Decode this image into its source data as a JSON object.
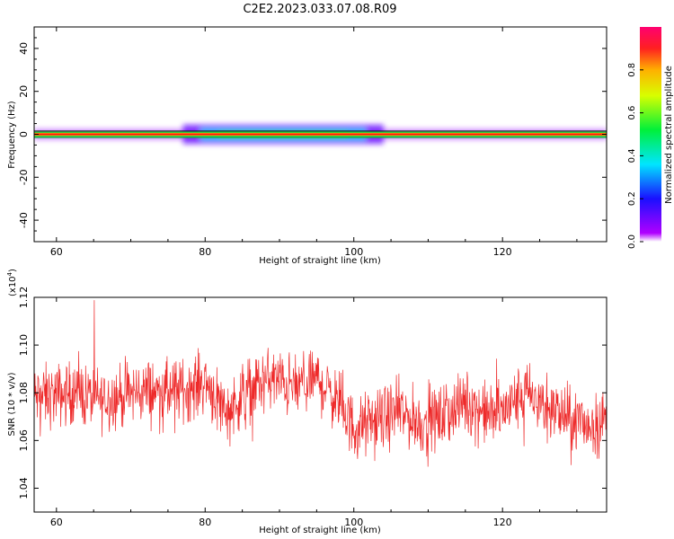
{
  "figure": {
    "title": "C2E2.2023.033.07.08.R09"
  },
  "chart_data": [
    {
      "type": "heatmap",
      "xlabel": "Height of straight line (km)",
      "ylabel": "Frequency (Hz)",
      "xlim": [
        57,
        134
      ],
      "ylim": [
        -50,
        50
      ],
      "xticks": [
        60,
        80,
        100,
        120
      ],
      "yticks": [
        -40,
        -20,
        0,
        20,
        40
      ],
      "colorbar": {
        "label": "Normalized spectral amplitude",
        "range": [
          0,
          1
        ],
        "ticks": [
          0.0,
          0.2,
          0.4,
          0.6,
          0.8
        ],
        "colormap": "rainbow (violet-blue-cyan-green-yellow-red)"
      },
      "description_of_values": {
        "peak_frequency_hz": 0,
        "spectral_core_amplitude": 1.0,
        "spread_region_km": [
          77,
          104
        ],
        "spread_halfwidth_hz": 4
      }
    },
    {
      "type": "line",
      "xlabel": "Height of straight line (km)",
      "ylabel": "SNR (10 * v/v)",
      "yscale_label": "(x10",
      "yscale_exp": "4",
      "yscale_suffix": ")",
      "xlim": [
        57,
        134
      ],
      "ylim": [
        1.03,
        1.12
      ],
      "xticks": [
        60,
        80,
        100,
        120
      ],
      "yticks": [
        1.04,
        1.06,
        1.08,
        1.1,
        1.12
      ],
      "series_color": "#ee2a2a",
      "series": [
        {
          "x": [
            57,
            60,
            63,
            66,
            69,
            72,
            75,
            78,
            80,
            83,
            86,
            89,
            92,
            95,
            98,
            100,
            103,
            106,
            109,
            112,
            115,
            118,
            120,
            123,
            126,
            129,
            132,
            134
          ],
          "y": [
            1.078,
            1.079,
            1.08,
            1.077,
            1.079,
            1.081,
            1.08,
            1.082,
            1.085,
            1.072,
            1.082,
            1.086,
            1.082,
            1.086,
            1.076,
            1.065,
            1.068,
            1.072,
            1.067,
            1.07,
            1.076,
            1.071,
            1.072,
            1.08,
            1.074,
            1.069,
            1.066,
            1.069
          ]
        }
      ]
    }
  ]
}
